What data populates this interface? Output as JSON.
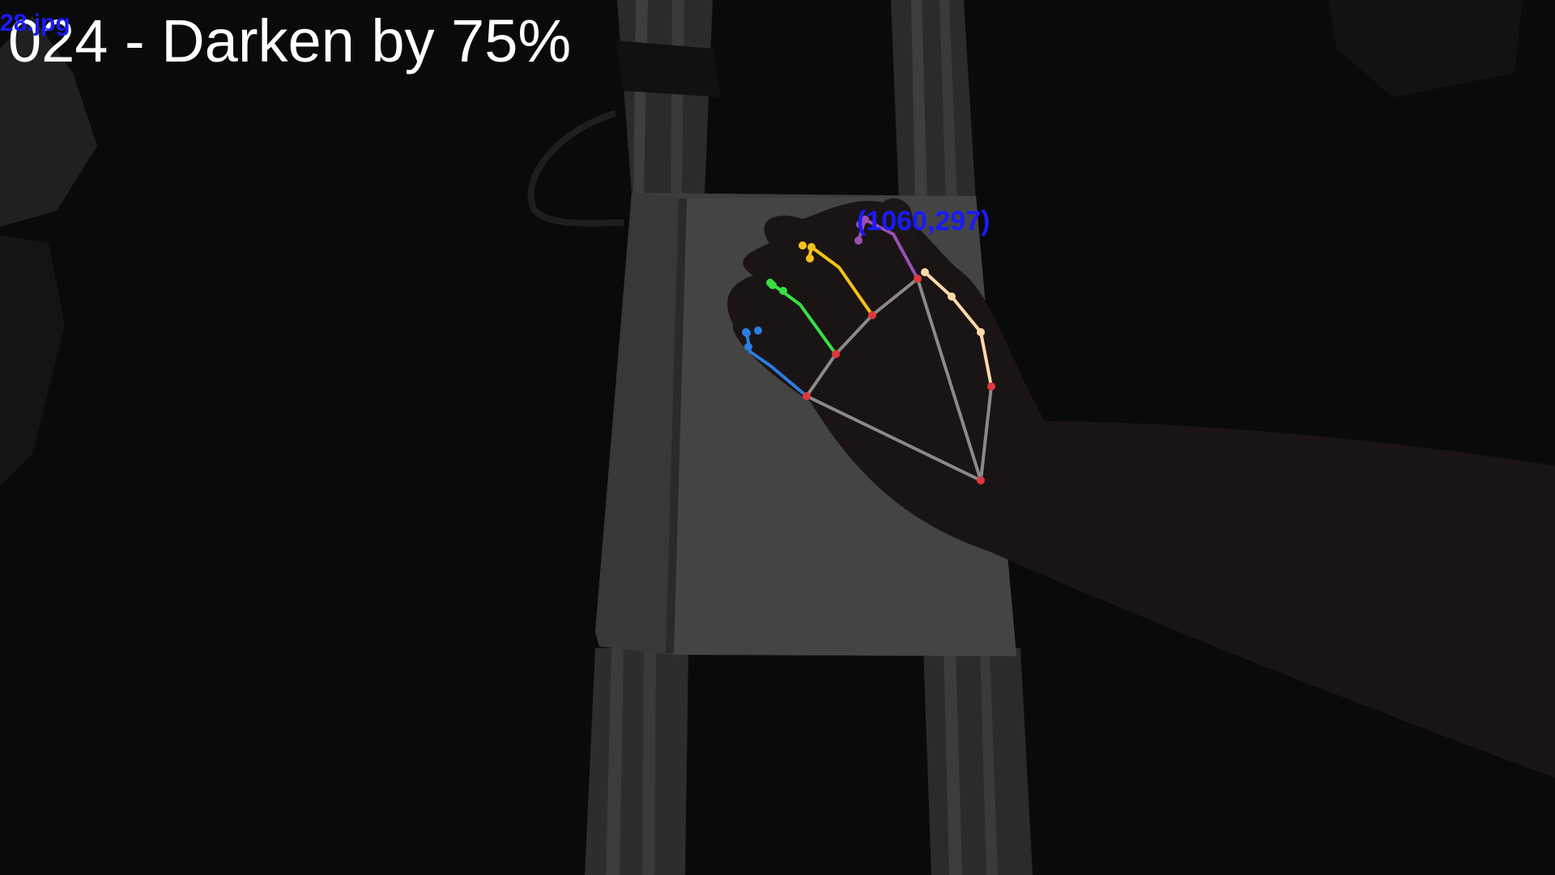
{
  "overlay": {
    "caption": "024 - Darken by 75%",
    "filename": "28.jpg",
    "coordinate_readout": "(1060,297)"
  },
  "colors": {
    "background": "#0a0a0a",
    "caption_text": "#ffffff",
    "annotation_text": "#1a1aff",
    "palm_lines": "#8a8a8a",
    "joint_red": "#e0383a",
    "thumb": "#ffd9a8",
    "index": "#9b4fb0",
    "middle": "#f4c21a",
    "ring": "#37e043",
    "pinky": "#2a7de0"
  },
  "scene": {
    "objects": [
      "aluminum-rail-left",
      "aluminum-rail-right",
      "white-notebook",
      "hand",
      "arm"
    ]
  }
}
